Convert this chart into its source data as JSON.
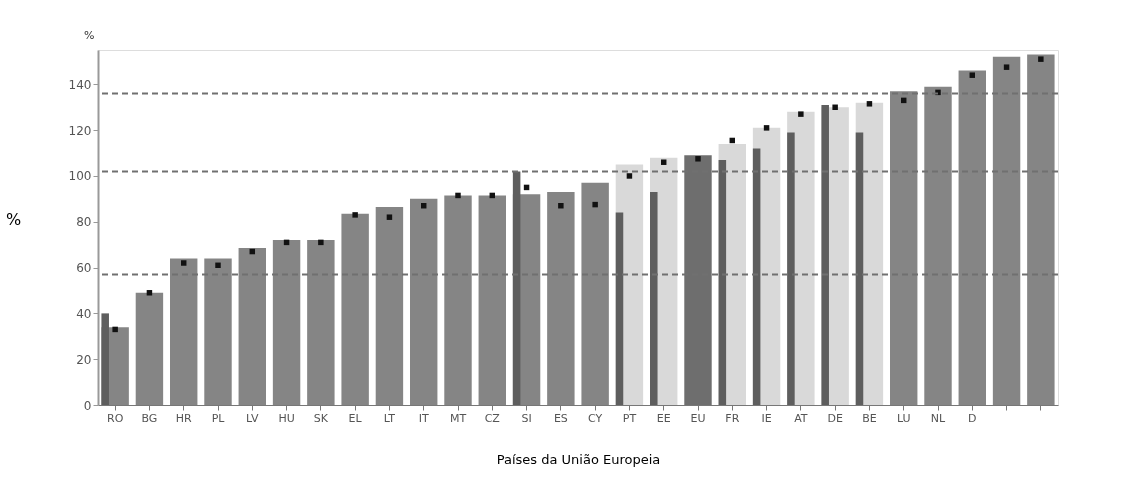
{
  "chart_data": {
    "type": "bar",
    "xlabel": "Países da União Europeia",
    "ylabel": "%",
    "annotations": [
      "%"
    ],
    "categories": [
      "RO",
      "BG",
      "HR",
      "PL",
      "LV",
      "HU",
      "SK",
      "EL",
      "LT",
      "IT",
      "MT",
      "CZ",
      "SI",
      "ES",
      "CY",
      "PT",
      "EE",
      "EU",
      "FR",
      "IE",
      "AT",
      "DE",
      "BE",
      "LU",
      "NL",
      "D",
      null,
      null
    ],
    "series": [
      {
        "type": "bar",
        "color": "#d9d9d9",
        "values": [
          null,
          null,
          null,
          null,
          null,
          null,
          null,
          null,
          null,
          null,
          null,
          null,
          null,
          null,
          null,
          105,
          108,
          null,
          114,
          121,
          128,
          130,
          132,
          null,
          null,
          null,
          null,
          null
        ]
      },
      {
        "type": "bar",
        "colors": [
          "#858585",
          "#858585",
          "#858585",
          "#858585",
          "#858585",
          "#858585",
          "#858585",
          "#858585",
          "#858585",
          "#858585",
          "#858585",
          "#858585",
          "#858585",
          "#858585",
          "#858585",
          "#858585",
          "#858585",
          "#6e6e6e",
          "#858585",
          "#858585",
          "#858585",
          "#858585",
          "#858585",
          "#858585",
          "#858585",
          "#858585",
          "#858585",
          "#858585"
        ],
        "values": [
          34,
          49,
          64,
          64,
          68.5,
          72,
          72,
          83.5,
          86.5,
          90,
          91.5,
          91.5,
          92,
          93,
          97,
          null,
          null,
          109,
          null,
          null,
          null,
          null,
          null,
          137,
          139,
          146,
          152,
          153
        ]
      },
      {
        "type": "bar",
        "color": "#5e5e5e",
        "values": [
          40,
          null,
          null,
          null,
          null,
          null,
          null,
          null,
          null,
          null,
          null,
          null,
          102,
          null,
          null,
          84,
          93,
          null,
          107,
          112,
          119,
          131,
          119,
          null,
          null,
          null,
          null,
          null
        ]
      },
      {
        "type": "scatter",
        "color": "#111111",
        "values": [
          33,
          49,
          62,
          61,
          67,
          71,
          71,
          83,
          82,
          87,
          91.5,
          91.5,
          95,
          87,
          87.5,
          100,
          106,
          107.5,
          115.5,
          121,
          127,
          130,
          131.5,
          133,
          136.5,
          144,
          147.5,
          151
        ]
      }
    ],
    "ref_lines": [
      {
        "axis": "y",
        "value": 57,
        "color": "#707070",
        "line_style": "dashed"
      },
      {
        "axis": "y",
        "value": 102,
        "color": "#707070",
        "line_style": "dashed"
      },
      {
        "axis": "y",
        "value": 136,
        "color": "#707070",
        "line_style": "dashed"
      }
    ],
    "ylim": [
      0,
      155
    ],
    "yticks": [
      0,
      20,
      40,
      60,
      80,
      100,
      120,
      140
    ],
    "grid": false,
    "marker": "square"
  }
}
